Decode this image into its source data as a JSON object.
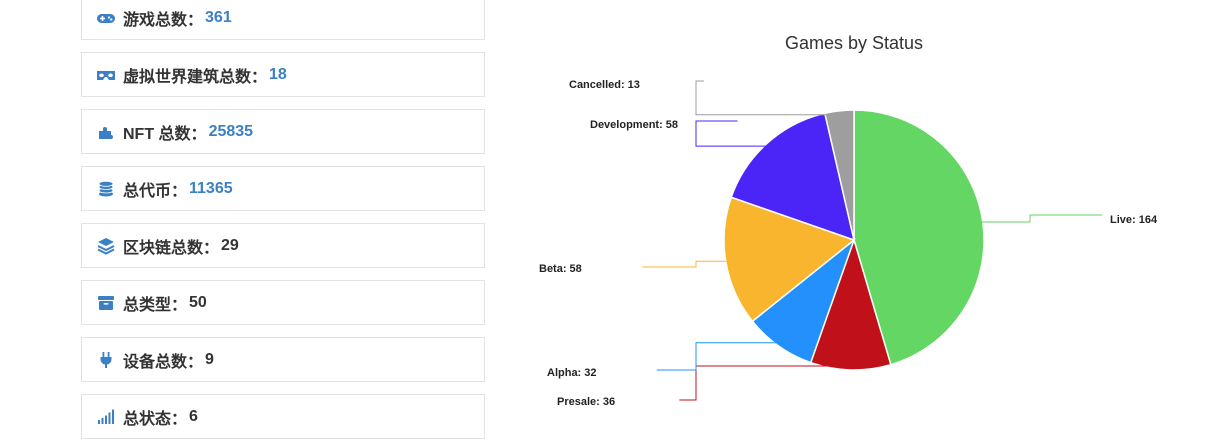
{
  "colors": {
    "icon": "#3b80c4",
    "value_blue": "#3b80c4",
    "text_dark": "#333333",
    "border": "#e3e3e3"
  },
  "stats": [
    {
      "icon": "gamepad-icon",
      "label": "游戏总数：",
      "value": "361",
      "value_style": "blue"
    },
    {
      "icon": "vr-headset-icon",
      "label": "虚拟世界建筑总数：",
      "value": "18",
      "value_style": "blue"
    },
    {
      "icon": "puzzle-icon",
      "label": "NFT 总数：",
      "value": "25835",
      "value_style": "blue"
    },
    {
      "icon": "coins-icon",
      "label": "总代币：",
      "value": "11365",
      "value_style": "blue"
    },
    {
      "icon": "layers-icon",
      "label": "区块链总数：",
      "value": "29",
      "value_style": "dark"
    },
    {
      "icon": "box-icon",
      "label": "总类型：",
      "value": "50",
      "value_style": "dark"
    },
    {
      "icon": "plug-icon",
      "label": "设备总数：",
      "value": "9",
      "value_style": "dark"
    },
    {
      "icon": "signal-bars-icon",
      "label": "总状态：",
      "value": "6",
      "value_style": "dark"
    }
  ],
  "chart_data": {
    "type": "pie",
    "title": "Games by Status",
    "legend": "none",
    "slices": [
      {
        "name": "Live",
        "value": 164,
        "color": "#63d663"
      },
      {
        "name": "Presale",
        "value": 36,
        "color": "#c0111b"
      },
      {
        "name": "Alpha",
        "value": 32,
        "color": "#2390fb"
      },
      {
        "name": "Beta",
        "value": 58,
        "color": "#fab52f"
      },
      {
        "name": "Development",
        "value": 58,
        "color": "#4b24f7"
      },
      {
        "name": "Cancelled",
        "value": 13,
        "color": "#9e9e9e"
      }
    ]
  }
}
